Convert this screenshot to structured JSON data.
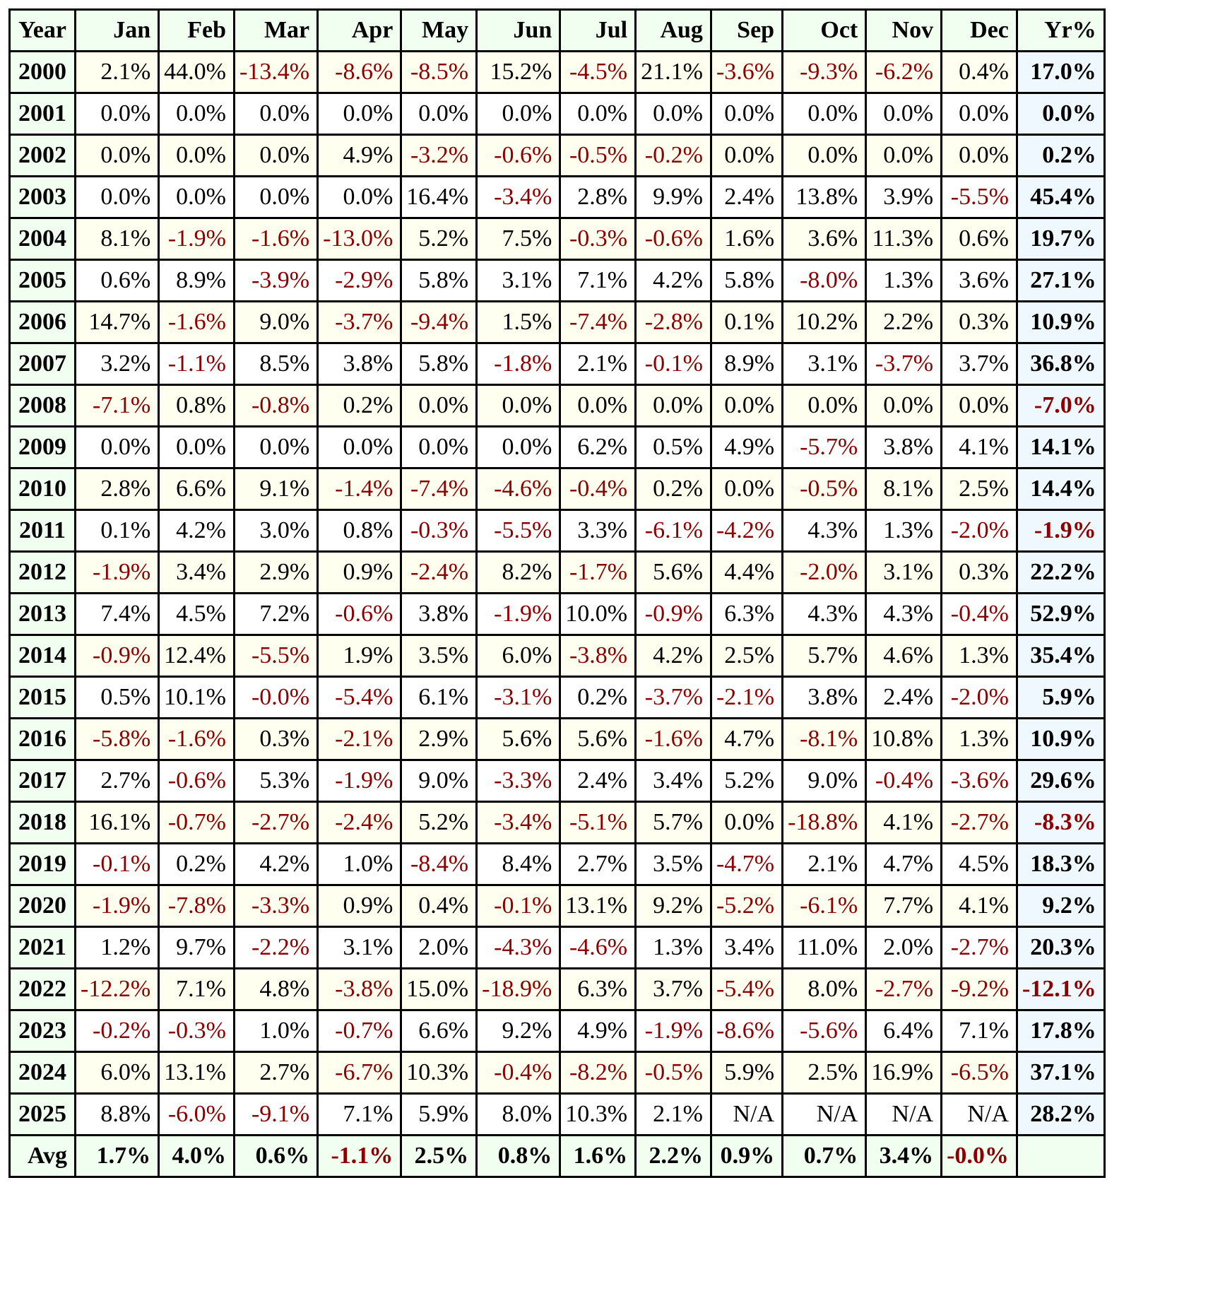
{
  "chart_data": {
    "type": "table",
    "columns": [
      "Year",
      "Jan",
      "Feb",
      "Mar",
      "Apr",
      "May",
      "Jun",
      "Jul",
      "Aug",
      "Sep",
      "Oct",
      "Nov",
      "Dec",
      "Yr%"
    ],
    "rows": [
      {
        "year": "2000",
        "months": [
          "2.1%",
          "44.0%",
          "-13.4%",
          "-8.6%",
          "-8.5%",
          "15.2%",
          "-4.5%",
          "21.1%",
          "-3.6%",
          "-9.3%",
          "-6.2%",
          "0.4%"
        ],
        "yr": "17.0%"
      },
      {
        "year": "2001",
        "months": [
          "0.0%",
          "0.0%",
          "0.0%",
          "0.0%",
          "0.0%",
          "0.0%",
          "0.0%",
          "0.0%",
          "0.0%",
          "0.0%",
          "0.0%",
          "0.0%"
        ],
        "yr": "0.0%"
      },
      {
        "year": "2002",
        "months": [
          "0.0%",
          "0.0%",
          "0.0%",
          "4.9%",
          "-3.2%",
          "-0.6%",
          "-0.5%",
          "-0.2%",
          "0.0%",
          "0.0%",
          "0.0%",
          "0.0%"
        ],
        "yr": "0.2%"
      },
      {
        "year": "2003",
        "months": [
          "0.0%",
          "0.0%",
          "0.0%",
          "0.0%",
          "16.4%",
          "-3.4%",
          "2.8%",
          "9.9%",
          "2.4%",
          "13.8%",
          "3.9%",
          "-5.5%"
        ],
        "yr": "45.4%"
      },
      {
        "year": "2004",
        "months": [
          "8.1%",
          "-1.9%",
          "-1.6%",
          "-13.0%",
          "5.2%",
          "7.5%",
          "-0.3%",
          "-0.6%",
          "1.6%",
          "3.6%",
          "11.3%",
          "0.6%"
        ],
        "yr": "19.7%"
      },
      {
        "year": "2005",
        "months": [
          "0.6%",
          "8.9%",
          "-3.9%",
          "-2.9%",
          "5.8%",
          "3.1%",
          "7.1%",
          "4.2%",
          "5.8%",
          "-8.0%",
          "1.3%",
          "3.6%"
        ],
        "yr": "27.1%"
      },
      {
        "year": "2006",
        "months": [
          "14.7%",
          "-1.6%",
          "9.0%",
          "-3.7%",
          "-9.4%",
          "1.5%",
          "-7.4%",
          "-2.8%",
          "0.1%",
          "10.2%",
          "2.2%",
          "0.3%"
        ],
        "yr": "10.9%"
      },
      {
        "year": "2007",
        "months": [
          "3.2%",
          "-1.1%",
          "8.5%",
          "3.8%",
          "5.8%",
          "-1.8%",
          "2.1%",
          "-0.1%",
          "8.9%",
          "3.1%",
          "-3.7%",
          "3.7%"
        ],
        "yr": "36.8%"
      },
      {
        "year": "2008",
        "months": [
          "-7.1%",
          "0.8%",
          "-0.8%",
          "0.2%",
          "0.0%",
          "0.0%",
          "0.0%",
          "0.0%",
          "0.0%",
          "0.0%",
          "0.0%",
          "0.0%"
        ],
        "yr": "-7.0%"
      },
      {
        "year": "2009",
        "months": [
          "0.0%",
          "0.0%",
          "0.0%",
          "0.0%",
          "0.0%",
          "0.0%",
          "6.2%",
          "0.5%",
          "4.9%",
          "-5.7%",
          "3.8%",
          "4.1%"
        ],
        "yr": "14.1%"
      },
      {
        "year": "2010",
        "months": [
          "2.8%",
          "6.6%",
          "9.1%",
          "-1.4%",
          "-7.4%",
          "-4.6%",
          "-0.4%",
          "0.2%",
          "0.0%",
          "-0.5%",
          "8.1%",
          "2.5%"
        ],
        "yr": "14.4%"
      },
      {
        "year": "2011",
        "months": [
          "0.1%",
          "4.2%",
          "3.0%",
          "0.8%",
          "-0.3%",
          "-5.5%",
          "3.3%",
          "-6.1%",
          "-4.2%",
          "4.3%",
          "1.3%",
          "-2.0%"
        ],
        "yr": "-1.9%"
      },
      {
        "year": "2012",
        "months": [
          "-1.9%",
          "3.4%",
          "2.9%",
          "0.9%",
          "-2.4%",
          "8.2%",
          "-1.7%",
          "5.6%",
          "4.4%",
          "-2.0%",
          "3.1%",
          "0.3%"
        ],
        "yr": "22.2%"
      },
      {
        "year": "2013",
        "months": [
          "7.4%",
          "4.5%",
          "7.2%",
          "-0.6%",
          "3.8%",
          "-1.9%",
          "10.0%",
          "-0.9%",
          "6.3%",
          "4.3%",
          "4.3%",
          "-0.4%"
        ],
        "yr": "52.9%"
      },
      {
        "year": "2014",
        "months": [
          "-0.9%",
          "12.4%",
          "-5.5%",
          "1.9%",
          "3.5%",
          "6.0%",
          "-3.8%",
          "4.2%",
          "2.5%",
          "5.7%",
          "4.6%",
          "1.3%"
        ],
        "yr": "35.4%"
      },
      {
        "year": "2015",
        "months": [
          "0.5%",
          "10.1%",
          "-0.0%",
          "-5.4%",
          "6.1%",
          "-3.1%",
          "0.2%",
          "-3.7%",
          "-2.1%",
          "3.8%",
          "2.4%",
          "-2.0%"
        ],
        "yr": "5.9%"
      },
      {
        "year": "2016",
        "months": [
          "-5.8%",
          "-1.6%",
          "0.3%",
          "-2.1%",
          "2.9%",
          "5.6%",
          "5.6%",
          "-1.6%",
          "4.7%",
          "-8.1%",
          "10.8%",
          "1.3%"
        ],
        "yr": "10.9%"
      },
      {
        "year": "2017",
        "months": [
          "2.7%",
          "-0.6%",
          "5.3%",
          "-1.9%",
          "9.0%",
          "-3.3%",
          "2.4%",
          "3.4%",
          "5.2%",
          "9.0%",
          "-0.4%",
          "-3.6%"
        ],
        "yr": "29.6%"
      },
      {
        "year": "2018",
        "months": [
          "16.1%",
          "-0.7%",
          "-2.7%",
          "-2.4%",
          "5.2%",
          "-3.4%",
          "-5.1%",
          "5.7%",
          "0.0%",
          "-18.8%",
          "4.1%",
          "-2.7%"
        ],
        "yr": "-8.3%"
      },
      {
        "year": "2019",
        "months": [
          "-0.1%",
          "0.2%",
          "4.2%",
          "1.0%",
          "-8.4%",
          "8.4%",
          "2.7%",
          "3.5%",
          "-4.7%",
          "2.1%",
          "4.7%",
          "4.5%"
        ],
        "yr": "18.3%"
      },
      {
        "year": "2020",
        "months": [
          "-1.9%",
          "-7.8%",
          "-3.3%",
          "0.9%",
          "0.4%",
          "-0.1%",
          "13.1%",
          "9.2%",
          "-5.2%",
          "-6.1%",
          "7.7%",
          "4.1%"
        ],
        "yr": "9.2%"
      },
      {
        "year": "2021",
        "months": [
          "1.2%",
          "9.7%",
          "-2.2%",
          "3.1%",
          "2.0%",
          "-4.3%",
          "-4.6%",
          "1.3%",
          "3.4%",
          "11.0%",
          "2.0%",
          "-2.7%"
        ],
        "yr": "20.3%"
      },
      {
        "year": "2022",
        "months": [
          "-12.2%",
          "7.1%",
          "4.8%",
          "-3.8%",
          "15.0%",
          "-18.9%",
          "6.3%",
          "3.7%",
          "-5.4%",
          "8.0%",
          "-2.7%",
          "-9.2%"
        ],
        "yr": "-12.1%"
      },
      {
        "year": "2023",
        "months": [
          "-0.2%",
          "-0.3%",
          "1.0%",
          "-0.7%",
          "6.6%",
          "9.2%",
          "4.9%",
          "-1.9%",
          "-8.6%",
          "-5.6%",
          "6.4%",
          "7.1%"
        ],
        "yr": "17.8%"
      },
      {
        "year": "2024",
        "months": [
          "6.0%",
          "13.1%",
          "2.7%",
          "-6.7%",
          "10.3%",
          "-0.4%",
          "-8.2%",
          "-0.5%",
          "5.9%",
          "2.5%",
          "16.9%",
          "-6.5%"
        ],
        "yr": "37.1%"
      },
      {
        "year": "2025",
        "months": [
          "8.8%",
          "-6.0%",
          "-9.1%",
          "7.1%",
          "5.9%",
          "8.0%",
          "10.3%",
          "2.1%",
          "N/A",
          "N/A",
          "N/A",
          "N/A"
        ],
        "yr": "28.2%"
      }
    ],
    "avg": {
      "label": "Avg",
      "months": [
        "1.7%",
        "4.0%",
        "0.6%",
        "-1.1%",
        "2.5%",
        "0.8%",
        "1.6%",
        "2.2%",
        "0.9%",
        "0.7%",
        "3.4%",
        "-0.0%"
      ],
      "yr": ""
    },
    "colors": {
      "negative": "#8b0000",
      "header_bg": "#f0fff0",
      "yr_bg": "#f0f8ff",
      "alt_row_bg": "#fffff0"
    }
  }
}
